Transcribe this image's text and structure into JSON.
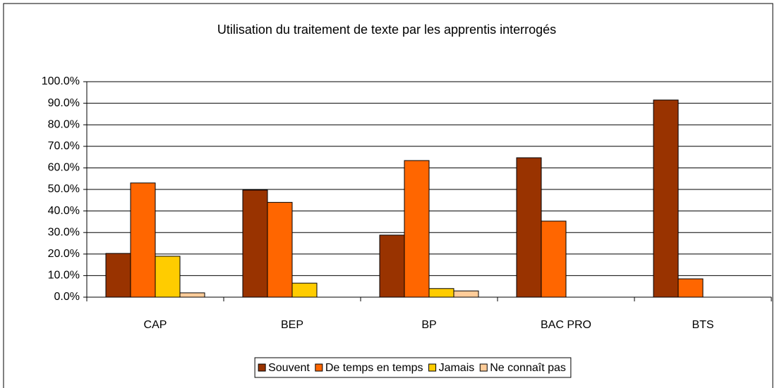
{
  "chart_data": {
    "type": "bar",
    "title": "Utilisation du traitement de texte par les apprentis interrogés",
    "categories": [
      "CAP",
      "BEP",
      "BP",
      "BAC PRO",
      "BTS"
    ],
    "series": [
      {
        "name": "Souvent",
        "color": "#993300",
        "values": [
          20.3,
          49.7,
          28.8,
          64.7,
          91.5
        ]
      },
      {
        "name": "De temps en temps",
        "color": "#ff6600",
        "values": [
          53,
          44,
          63.4,
          35.3,
          8.5
        ]
      },
      {
        "name": "Jamais",
        "color": "#ffcc00",
        "values": [
          19,
          6.5,
          4,
          0,
          0
        ]
      },
      {
        "name": "Ne connaît pas",
        "color": "#ffcc99",
        "values": [
          2,
          0,
          2.9,
          0,
          0
        ]
      }
    ],
    "ylim": [
      0,
      100
    ],
    "yticks": [
      {
        "value": 0,
        "label": "0.0%"
      },
      {
        "value": 10,
        "label": "10.0%"
      },
      {
        "value": 20,
        "label": "20.0%"
      },
      {
        "value": 30,
        "label": "30.0%"
      },
      {
        "value": 40,
        "label": "40.0%"
      },
      {
        "value": 50,
        "label": "50.0%"
      },
      {
        "value": 60,
        "label": "60.0%"
      },
      {
        "value": 70,
        "label": "70.0%"
      },
      {
        "value": 80,
        "label": "80.0%"
      },
      {
        "value": 90,
        "label": "90.0%"
      },
      {
        "value": 100,
        "label": "100.0%"
      }
    ],
    "grid": true,
    "legend": "bottom"
  }
}
